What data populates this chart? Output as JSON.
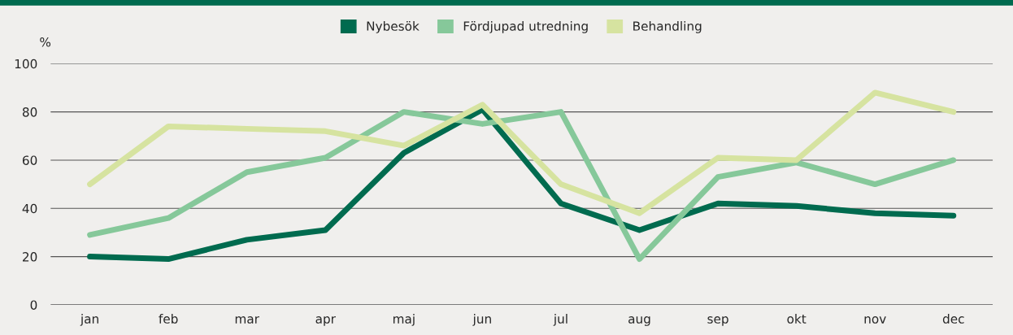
{
  "chart_data": {
    "type": "line",
    "ylabel": "%",
    "categories": [
      "jan",
      "feb",
      "mar",
      "apr",
      "maj",
      "jun",
      "jul",
      "aug",
      "sep",
      "okt",
      "nov",
      "dec"
    ],
    "series": [
      {
        "name": "Nybesök",
        "color": "#006b4f",
        "values": [
          20,
          19,
          27,
          31,
          63,
          81,
          42,
          31,
          42,
          41,
          38,
          37
        ]
      },
      {
        "name": "Fördjupad utredning",
        "color": "#86c89a",
        "values": [
          29,
          36,
          55,
          61,
          80,
          75,
          80,
          19,
          53,
          59,
          50,
          60
        ]
      },
      {
        "name": "Behandling",
        "color": "#d6e3a0",
        "values": [
          50,
          74,
          73,
          72,
          66,
          83,
          50,
          38,
          61,
          60,
          88,
          80
        ]
      }
    ],
    "ylim": [
      0,
      100
    ],
    "yticks": [
      0,
      20,
      40,
      60,
      80,
      100
    ],
    "grid": "y",
    "legend": "top",
    "marker": "none",
    "line_style": "solid"
  }
}
